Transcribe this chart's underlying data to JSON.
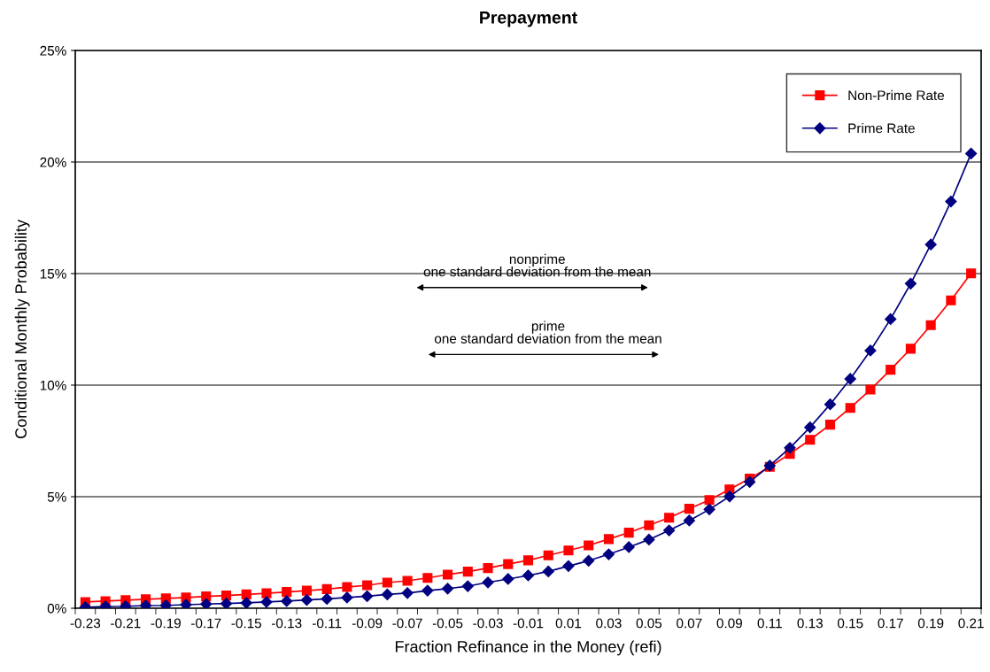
{
  "chart_data": {
    "type": "line",
    "title": "Prepayment",
    "xlabel": "Fraction Refinance in the Money (refi)",
    "ylabel": "Conditional Monthly Probability",
    "categories": [
      "-0.23",
      null,
      "-0.21",
      null,
      "-0.19",
      null,
      "-0.17",
      null,
      "-0.15",
      null,
      "-0.13",
      null,
      "-0.11",
      null,
      "-0.09",
      null,
      "-0.07",
      null,
      "-0.05",
      null,
      "-0.03",
      null,
      "-0.01",
      null,
      "0.01",
      null,
      "0.03",
      null,
      "0.05",
      null,
      "0.07",
      null,
      "0.09",
      null,
      "0.11",
      null,
      "0.13",
      null,
      "0.15",
      null,
      "0.17",
      null,
      "0.19",
      null,
      "0.21"
    ],
    "series": [
      {
        "name": "Non-Prime Rate",
        "color": "#ff0000",
        "marker": "square",
        "values": [
          0.28,
          0.32,
          0.36,
          0.4,
          0.44,
          0.48,
          0.53,
          0.57,
          0.62,
          0.67,
          0.73,
          0.79,
          0.86,
          0.95,
          1.03,
          1.15,
          1.23,
          1.36,
          1.51,
          1.64,
          1.8,
          1.98,
          2.15,
          2.37,
          2.59,
          2.82,
          3.1,
          3.39,
          3.72,
          4.06,
          4.46,
          4.85,
          5.33,
          5.81,
          6.34,
          6.92,
          7.55,
          8.23,
          8.98,
          9.8,
          10.69,
          11.63,
          12.69,
          13.8,
          15.01
        ]
      },
      {
        "name": "Prime Rate",
        "color": "#000080",
        "marker": "diamond",
        "values": [
          0.05,
          0.08,
          0.09,
          0.12,
          0.13,
          0.16,
          0.19,
          0.21,
          0.24,
          0.28,
          0.32,
          0.37,
          0.42,
          0.48,
          0.54,
          0.62,
          0.68,
          0.79,
          0.88,
          0.99,
          1.16,
          1.31,
          1.47,
          1.65,
          1.89,
          2.13,
          2.42,
          2.74,
          3.08,
          3.49,
          3.93,
          4.43,
          5.01,
          5.66,
          6.39,
          7.19,
          8.11,
          9.14,
          10.28,
          11.55,
          12.96,
          14.55,
          16.3,
          18.23,
          20.38
        ]
      }
    ],
    "ylim": [
      0,
      25
    ],
    "yticks": [
      {
        "value": 0,
        "label": "0%"
      },
      {
        "value": 5,
        "label": "5%"
      },
      {
        "value": 10,
        "label": "10%"
      },
      {
        "value": 15,
        "label": "15%"
      },
      {
        "value": 20,
        "label": "20%"
      },
      {
        "value": 25,
        "label": "25%"
      }
    ],
    "grid": "y",
    "legend": "top right",
    "line_style": "solid",
    "annotations": [
      "nonprime\none standard deviation from the mean",
      "prime\none standard deviation from the mean"
    ]
  }
}
